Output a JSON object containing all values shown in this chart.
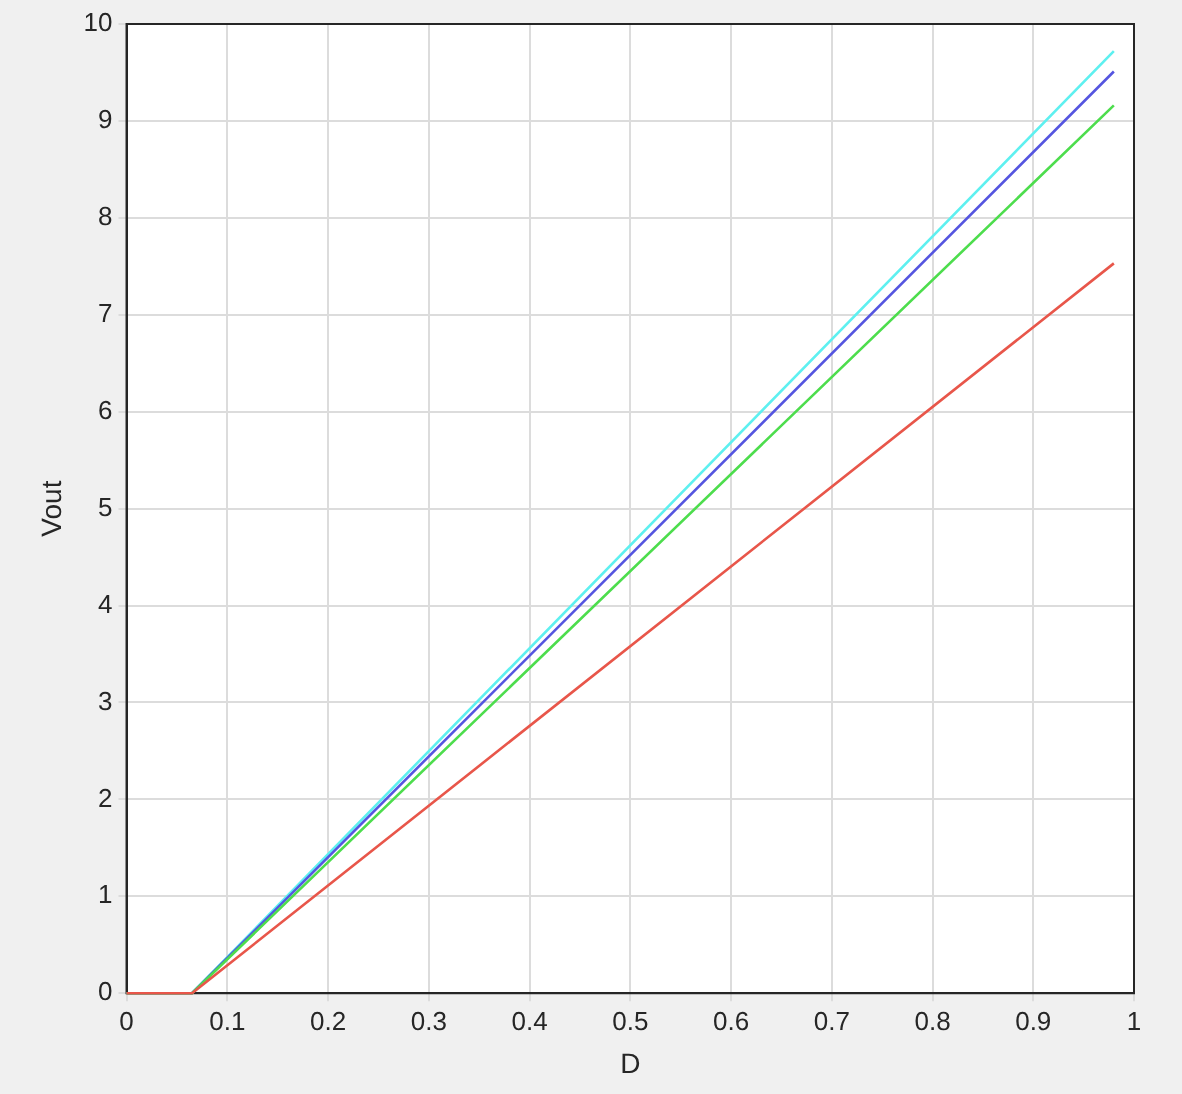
{
  "chart_data": {
    "type": "line",
    "xlabel": "D",
    "ylabel": "Vout",
    "xlim": [
      0,
      1
    ],
    "xticks": [
      0,
      0.1,
      0.2,
      0.3,
      0.4,
      0.5,
      0.6,
      0.7,
      0.8,
      0.9,
      1
    ],
    "ylim": [
      0,
      10
    ],
    "yticks": [
      0,
      1,
      2,
      3,
      4,
      5,
      6,
      7,
      8,
      9,
      10
    ],
    "grid": true,
    "marker": "none",
    "line_style": "solid",
    "series": [
      {
        "color": "#e8564a",
        "x": [
          0,
          0.065,
          0.98
        ],
        "values": [
          0,
          0,
          7.53
        ]
      },
      {
        "color": "#4ddd4d",
        "x": [
          0,
          0.065,
          0.98
        ],
        "values": [
          0,
          0,
          9.16
        ]
      },
      {
        "color": "#5555e0",
        "x": [
          0,
          0.065,
          0.98
        ],
        "values": [
          0,
          0,
          9.51
        ]
      },
      {
        "color": "#5ef0f0",
        "x": [
          0,
          0.065,
          0.98
        ],
        "values": [
          0,
          0,
          9.72
        ]
      }
    ]
  }
}
